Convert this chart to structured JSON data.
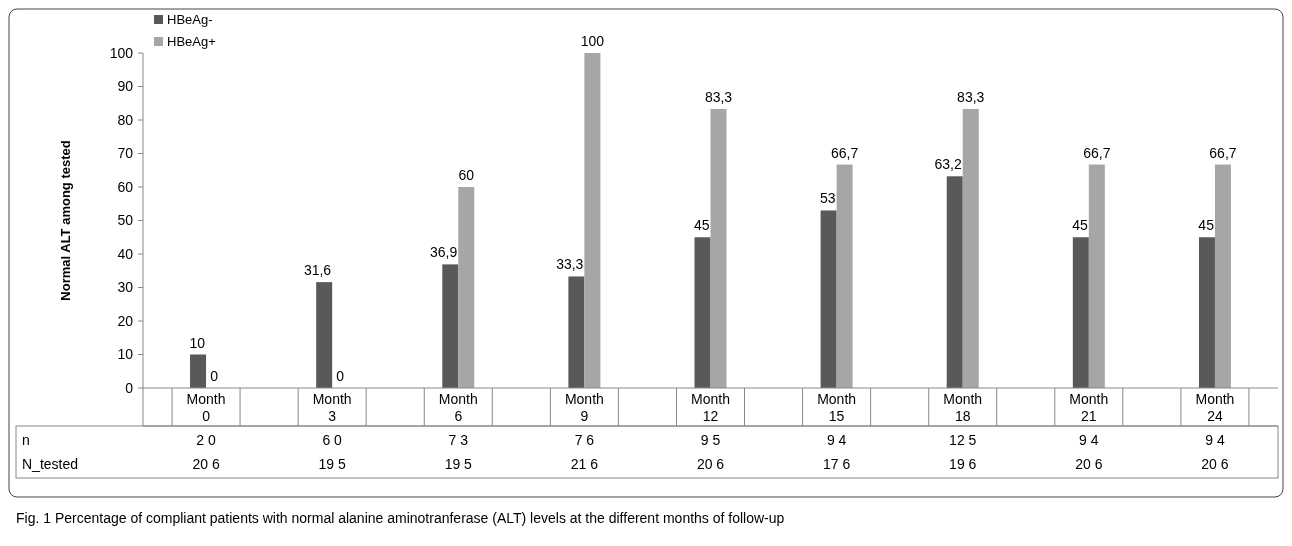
{
  "chart_data": {
    "type": "bar",
    "ylabel": "Normal ALT among tested",
    "categories": [
      "Month 0",
      "Month 3",
      "Month 6",
      "Month 9",
      "Month 12",
      "Month 15",
      "Month 18",
      "Month 21",
      "Month 24"
    ],
    "series": [
      {
        "name": "HBeAg-",
        "color": "#595959",
        "values": [
          10,
          31.6,
          36.9,
          33.3,
          45,
          53,
          63.2,
          45,
          45
        ],
        "value_labels": [
          "10",
          "31,6",
          "36,9",
          "33,3",
          "45",
          "53",
          "63,2",
          "45",
          "45"
        ]
      },
      {
        "name": "HBeAg+",
        "color": "#a6a6a6",
        "values": [
          0,
          0,
          60,
          100,
          83.3,
          66.7,
          83.3,
          66.7,
          66.7
        ],
        "value_labels": [
          "0",
          "0",
          "60",
          "100",
          "83,3",
          "66,7",
          "83,3",
          "66,7",
          "66,7"
        ]
      }
    ],
    "ylim": [
      0,
      100
    ],
    "yticks": [
      0,
      10,
      20,
      30,
      40,
      50,
      60,
      70,
      80,
      90,
      100
    ],
    "grid": false,
    "legend": "top left",
    "annotations": [
      "Fig. 1 Percentage of compliant patients with normal alanine aminotranferase (ALT) levels at the different months of follow-up",
      "n",
      "2 0",
      "6 0",
      "7 3",
      "7 6",
      "9 5",
      "9 4",
      "12 5",
      "9 4",
      "9 4",
      "N_tested",
      "20 6",
      "19 5",
      "19 5",
      "21 6",
      "20 6",
      "17 6",
      "19 6",
      "20 6",
      "20 6"
    ]
  }
}
